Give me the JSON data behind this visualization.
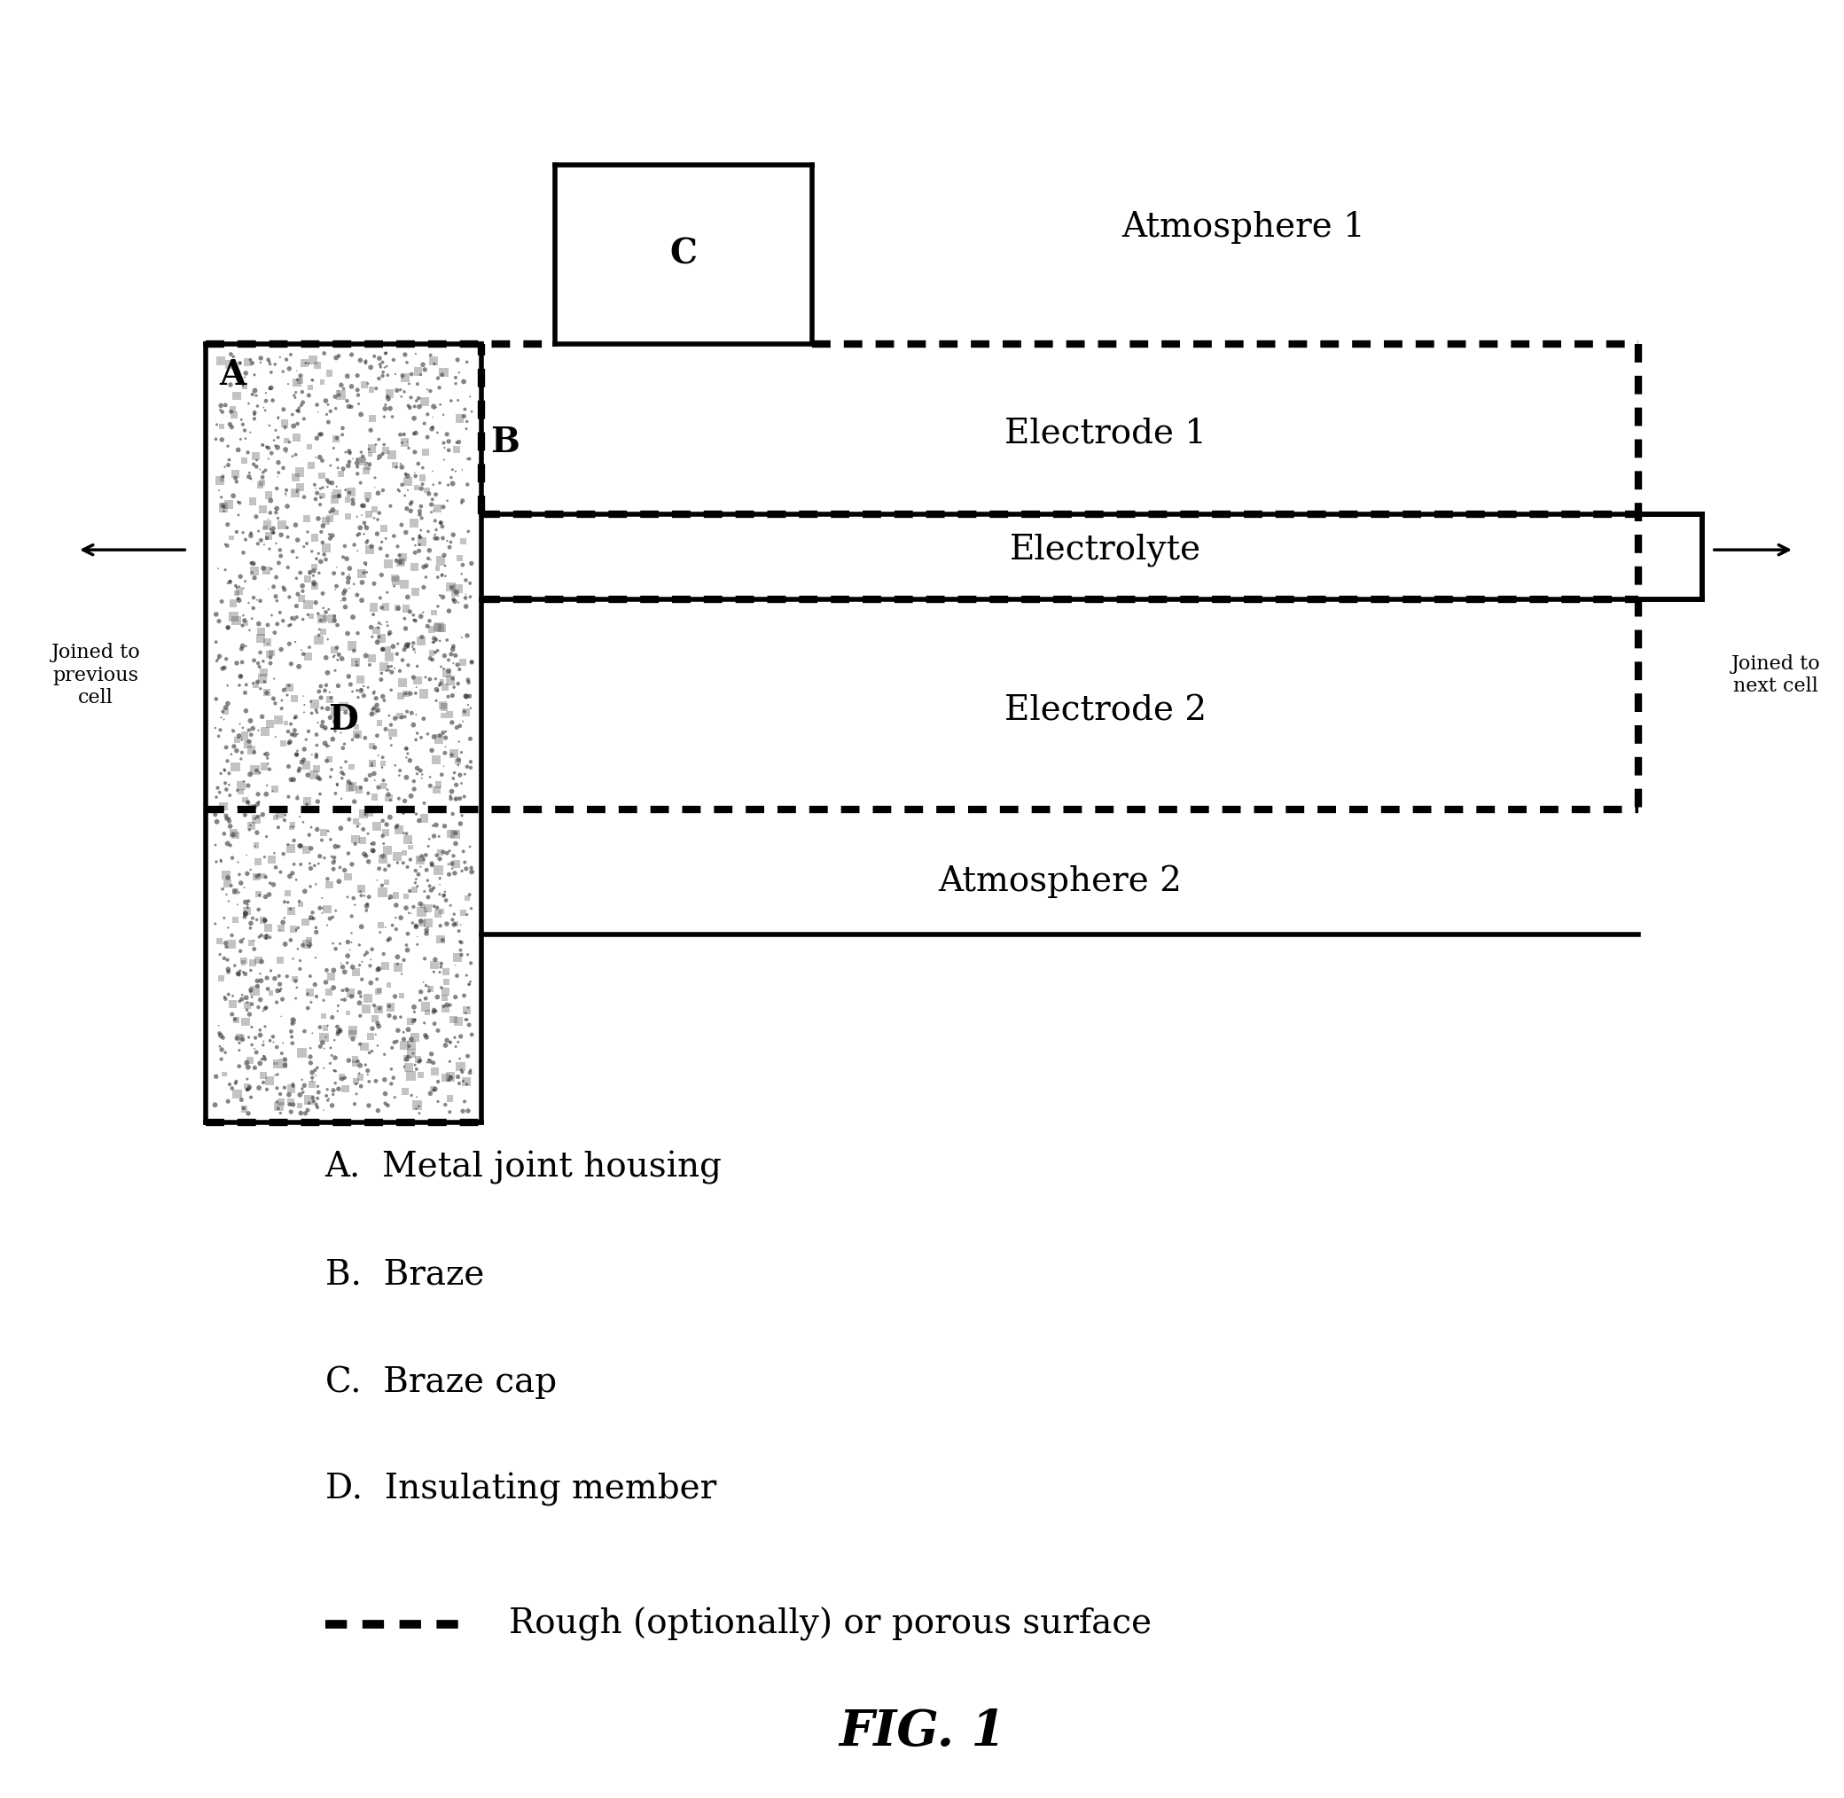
{
  "title": "FIG. 1",
  "bg_color": "#ffffff",
  "fig_width": 20.8,
  "fig_height": 20.28,
  "legend_items": [
    "A.  Metal joint housing",
    "B.  Braze",
    "C.  Braze cap",
    "D.  Insulating member"
  ],
  "legend_rough": "Rough (optionally) or porous surface",
  "atm1": "Atmosphere 1",
  "atm2": "Atmosphere 2",
  "electrode1": "Electrode 1",
  "electrode2": "Electrode 2",
  "electrolyte": "Electrolyte",
  "label_A": "A",
  "label_B": "B",
  "label_C": "C",
  "label_D": "D",
  "joined_prev": "Joined to\nprevious\ncell",
  "joined_next": "Joined to\nnext cell",
  "black": "#000000",
  "white": "#ffffff"
}
